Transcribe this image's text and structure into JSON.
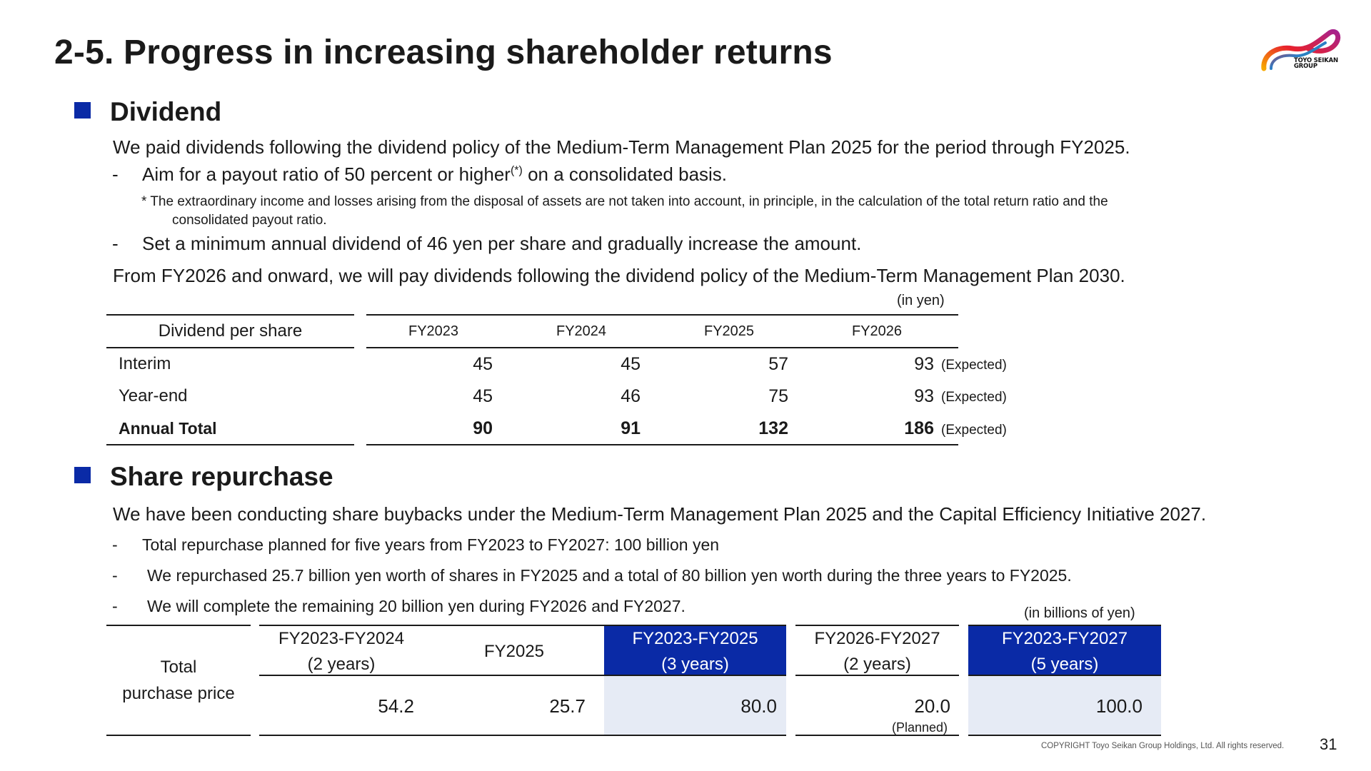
{
  "title": "2-5. Progress in increasing shareholder returns",
  "logo": {
    "text_line1": "TOYO SEIKAN",
    "text_line2": "GROUP"
  },
  "dividend": {
    "heading": "Dividend",
    "intro": "We paid dividends following the dividend policy of the Medium-Term Management Plan 2025 for the period through FY2025.",
    "bullet1_dash": "-",
    "bullet1_pre": "Aim for a payout ratio of 50 percent or higher",
    "bullet1_sup": "(*)",
    "bullet1_post": " on a consolidated basis.",
    "footnote_line1": "* The extraordinary income and losses arising from the disposal of assets are not taken into account, in principle, in the calculation of the total return ratio and the",
    "footnote_line2": "consolidated payout ratio.",
    "bullet2_dash": "-",
    "bullet2": "Set a minimum annual dividend of 46 yen per share and gradually increase the amount.",
    "outro": "From FY2026 and onward, we will pay dividends following the dividend policy of the Medium-Term Management Plan 2030.",
    "unit": "(in yen)",
    "table": {
      "row_header": "Dividend per share",
      "columns": [
        "FY2023",
        "FY2024",
        "FY2025",
        "FY2026"
      ],
      "rows": [
        {
          "label": "Interim",
          "values": [
            "45",
            "45",
            "57",
            "93"
          ],
          "note": "(Expected)"
        },
        {
          "label": "Year-end",
          "values": [
            "45",
            "46",
            "75",
            "93"
          ],
          "note": "(Expected)"
        },
        {
          "label": "Annual Total",
          "values": [
            "90",
            "91",
            "132",
            "186"
          ],
          "note": "(Expected)"
        }
      ]
    }
  },
  "repurchase": {
    "heading": "Share repurchase",
    "intro": "We have been conducting share buybacks under the Medium-Term Management Plan 2025 and the Capital Efficiency Initiative 2027.",
    "bullets": [
      {
        "dash": "-",
        "text": "Total repurchase planned for five years from FY2023 to FY2027: 100 billion yen"
      },
      {
        "dash": "-",
        "text": "We repurchased 25.7 billion yen worth of shares in FY2025 and a total of 80 billion yen worth during the three years to FY2025."
      },
      {
        "dash": "-",
        "text": "We will complete the remaining 20 billion yen during FY2026 and FY2027."
      }
    ],
    "unit": "(in billions of yen)",
    "table": {
      "row_label_line1": "Total",
      "row_label_line2": "purchase price",
      "col1_line1": "FY2023-FY2024",
      "col1_line2": "(2 years)",
      "col1_value": "54.2",
      "col2": "FY2025",
      "col2_value": "25.7",
      "col3_line1": "FY2023-FY2025",
      "col3_line2": "(3 years)",
      "col3_value": "80.0",
      "col4_line1": "FY2026-FY2027",
      "col4_line2": "(2 years)",
      "col4_value": "20.0",
      "col4_note": "(Planned)",
      "col5_line1": "FY2023-FY2027",
      "col5_line2": "(5 years)",
      "col5_value": "100.0"
    }
  },
  "colors": {
    "accent_blue": "#0a2aa6",
    "light_blue": "#e6ebf5"
  },
  "footer": {
    "copyright": "COPYRIGHT Toyo Seikan Group Holdings, Ltd. All rights reserved.",
    "page_number": "31"
  }
}
